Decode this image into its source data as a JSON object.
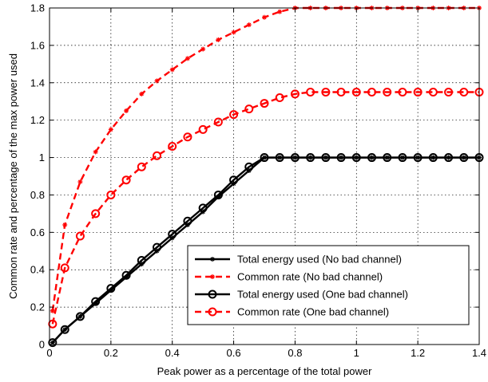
{
  "chart_data": {
    "type": "line",
    "xlabel": "Peak power as a percentage of the total power",
    "ylabel": "Common rate and percentage of the max power used",
    "xlim": [
      0,
      1.4
    ],
    "ylim": [
      0,
      1.8
    ],
    "xticks": [
      "0",
      "0.2",
      "0.4",
      "0.6",
      "0.8",
      "1",
      "1.2",
      "1.4"
    ],
    "yticks": [
      "0",
      "0.2",
      "0.4",
      "0.6",
      "0.8",
      "1",
      "1.2",
      "1.4",
      "1.6",
      "1.8"
    ],
    "grid": true,
    "legend_position": "bottom-right",
    "x": [
      0.01,
      0.05,
      0.1,
      0.15,
      0.2,
      0.25,
      0.3,
      0.35,
      0.4,
      0.45,
      0.5,
      0.55,
      0.6,
      0.65,
      0.7,
      0.75,
      0.8,
      0.85,
      0.9,
      0.95,
      1.0,
      1.05,
      1.1,
      1.15,
      1.2,
      1.25,
      1.3,
      1.35,
      1.4
    ],
    "series": [
      {
        "name": "Total energy used (No bad channel)",
        "color": "#000000",
        "dash": "solid",
        "marker": "star",
        "values": [
          0.01,
          0.08,
          0.15,
          0.22,
          0.29,
          0.36,
          0.43,
          0.5,
          0.57,
          0.64,
          0.71,
          0.79,
          0.86,
          0.93,
          1.0,
          1.0,
          1.0,
          1.0,
          1.0,
          1.0,
          1.0,
          1.0,
          1.0,
          1.0,
          1.0,
          1.0,
          1.0,
          1.0,
          1.0
        ]
      },
      {
        "name": "Common rate (No bad channel)",
        "color": "#ff0000",
        "dash": "dashed",
        "marker": "star",
        "values": [
          0.18,
          0.64,
          0.87,
          1.03,
          1.15,
          1.25,
          1.34,
          1.41,
          1.47,
          1.53,
          1.58,
          1.63,
          1.67,
          1.71,
          1.75,
          1.78,
          1.8,
          1.8,
          1.8,
          1.8,
          1.8,
          1.8,
          1.8,
          1.8,
          1.8,
          1.8,
          1.8,
          1.8,
          1.8
        ]
      },
      {
        "name": "Total energy used (One bad channel)",
        "color": "#000000",
        "dash": "solid",
        "marker": "circle",
        "values": [
          0.01,
          0.08,
          0.15,
          0.23,
          0.3,
          0.37,
          0.45,
          0.52,
          0.59,
          0.66,
          0.73,
          0.8,
          0.88,
          0.95,
          1.0,
          1.0,
          1.0,
          1.0,
          1.0,
          1.0,
          1.0,
          1.0,
          1.0,
          1.0,
          1.0,
          1.0,
          1.0,
          1.0,
          1.0
        ]
      },
      {
        "name": "Common rate (One bad channel)",
        "color": "#ff0000",
        "dash": "dashed",
        "marker": "circle",
        "values": [
          0.11,
          0.41,
          0.58,
          0.7,
          0.8,
          0.88,
          0.95,
          1.01,
          1.06,
          1.11,
          1.15,
          1.19,
          1.23,
          1.26,
          1.29,
          1.32,
          1.34,
          1.35,
          1.35,
          1.35,
          1.35,
          1.35,
          1.35,
          1.35,
          1.35,
          1.35,
          1.35,
          1.35,
          1.35
        ]
      }
    ]
  }
}
